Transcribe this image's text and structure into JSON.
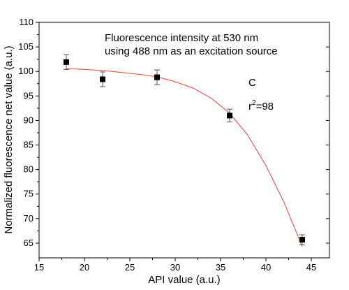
{
  "chart_data": {
    "type": "scatter",
    "xlabel": "API value (a.u.)",
    "ylabel": "Normalized fluorescence net value (a.u.)",
    "xlim": [
      15,
      47
    ],
    "ylim": [
      62,
      110
    ],
    "xticks": [
      15,
      20,
      25,
      30,
      35,
      40,
      45
    ],
    "yticks": [
      65,
      70,
      75,
      80,
      85,
      90,
      95,
      100,
      105,
      110
    ],
    "series": [
      {
        "marker": "square",
        "color": "#000000",
        "points": [
          {
            "x": 18,
            "y": 101.9,
            "err": 1.5
          },
          {
            "x": 22,
            "y": 98.4,
            "err": 1.5
          },
          {
            "x": 28,
            "y": 98.8,
            "err": 1.5
          },
          {
            "x": 36,
            "y": 91.0,
            "err": 1.3
          },
          {
            "x": 44,
            "y": 65.7,
            "err": 1.0
          }
        ]
      }
    ],
    "fit_curve": {
      "color": "#e8413a",
      "points": [
        [
          18,
          100.6
        ],
        [
          22,
          100.2
        ],
        [
          26,
          99.4
        ],
        [
          28,
          98.9
        ],
        [
          30,
          97.9
        ],
        [
          32,
          96.6
        ],
        [
          34,
          94.5
        ],
        [
          36,
          91.5
        ],
        [
          38,
          87.0
        ],
        [
          40,
          80.8
        ],
        [
          42,
          73.3
        ],
        [
          44,
          64.3
        ]
      ]
    },
    "annotations": {
      "line1": "Fluorescence intensity at 530 nm",
      "line2": "using 488 nm as an excitation source",
      "panel": "C",
      "r2_base": "r",
      "r2_sup": "2",
      "r2_value": "=98"
    },
    "grid": false,
    "legend": "none"
  }
}
